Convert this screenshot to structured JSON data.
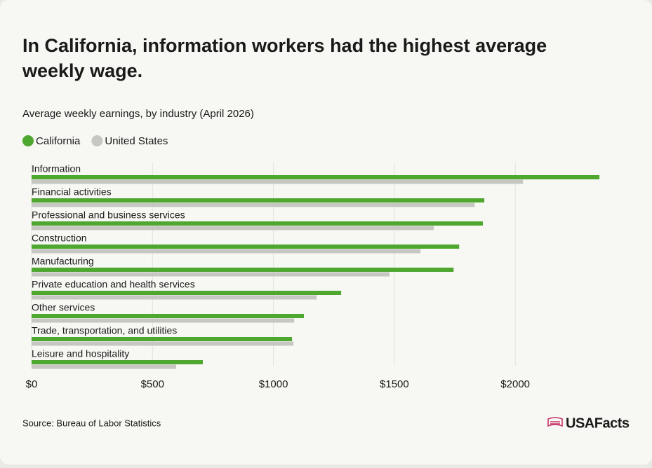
{
  "chart_data": {
    "type": "bar",
    "orientation": "horizontal",
    "title": "In California, information workers had the highest average weekly wage.",
    "subtitle": "Average weekly earnings, by industry (April 2026)",
    "source": "Source: Bureau of Labor Statistics",
    "brand": "USAFacts",
    "categories": [
      "Information",
      "Financial activities",
      "Professional and business services",
      "Construction",
      "Manufacturing",
      "Private education and health services",
      "Other services",
      "Trade, transportation, and utilities",
      "Leisure and hospitality"
    ],
    "series": [
      {
        "name": "California",
        "color": "#4ea72e",
        "values": [
          2348,
          1872,
          1866,
          1768,
          1745,
          1280,
          1126,
          1077,
          708
        ]
      },
      {
        "name": "United States",
        "color": "#c6c6c2",
        "values": [
          2032,
          1832,
          1663,
          1608,
          1480,
          1179,
          1086,
          1083,
          598
        ]
      }
    ],
    "xlim": [
      0,
      2400
    ],
    "xticks": [
      {
        "value": 0,
        "label": "$0"
      },
      {
        "value": 500,
        "label": "$500"
      },
      {
        "value": 1000,
        "label": "$1000"
      },
      {
        "value": 1500,
        "label": "$1500"
      },
      {
        "value": 2000,
        "label": "$2000"
      }
    ],
    "grid": true
  }
}
